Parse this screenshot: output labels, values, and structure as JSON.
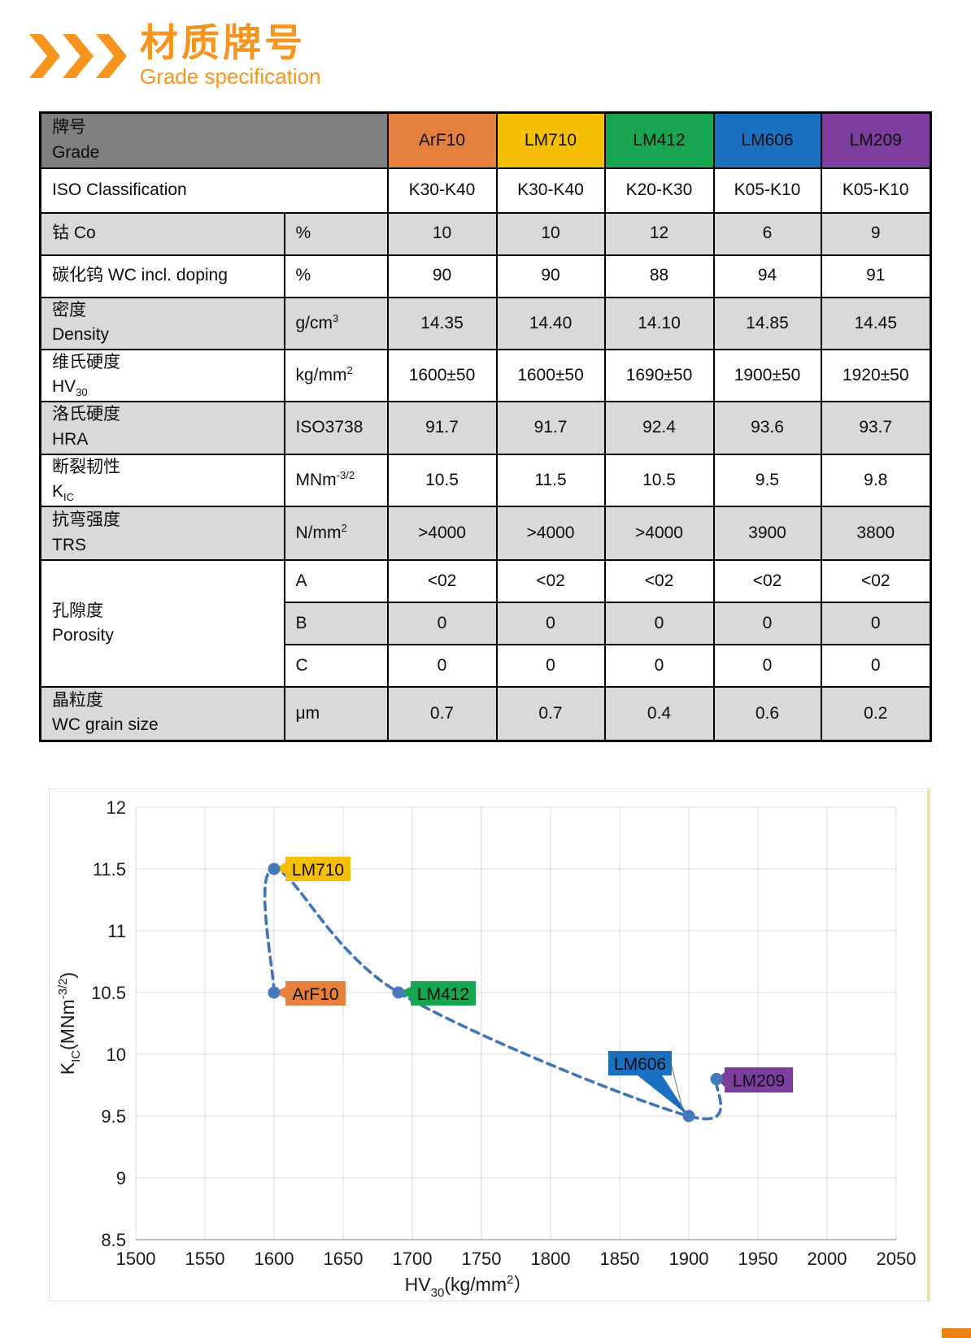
{
  "page": {
    "accent_color": "#F7941D",
    "corner_block_color": "#EE8211",
    "logo": {
      "title_cn": "材质牌号",
      "subtitle": "Grade specification"
    }
  },
  "table": {
    "header": {
      "label_cn": "牌号",
      "label_en": "Grade"
    },
    "grades": [
      {
        "name": "ArF10",
        "color": "#E5813D"
      },
      {
        "name": "LM710",
        "color": "#F5C003"
      },
      {
        "name": "LM412",
        "color": "#17A550"
      },
      {
        "name": "LM606",
        "color": "#1B6FC0"
      },
      {
        "name": "LM209",
        "color": "#7D3E9E"
      }
    ],
    "iso": {
      "label": "ISO Classification",
      "values": [
        "K30-K40",
        "K30-K40",
        "K20-K30",
        "K05-K10",
        "K05-K10"
      ]
    },
    "rows": [
      {
        "label_cn": "钴 Co",
        "label_en_pre": "",
        "label_en_sub": "",
        "unit_pre": "%",
        "unit_sup": "",
        "values": [
          "10",
          "10",
          "12",
          "6",
          "9"
        ]
      },
      {
        "label_cn": "碳化钨 WC incl. doping",
        "label_en_pre": "",
        "label_en_sub": "",
        "unit_pre": "%",
        "unit_sup": "",
        "values": [
          "90",
          "90",
          "88",
          "94",
          "91"
        ]
      },
      {
        "label_cn": "密度",
        "label_en_pre": "Density",
        "label_en_sub": "",
        "unit_pre": "g/cm",
        "unit_sup": "3",
        "values": [
          "14.35",
          "14.40",
          "14.10",
          "14.85",
          "14.45"
        ]
      },
      {
        "label_cn": "维氏硬度",
        "label_en_pre": "HV",
        "label_en_sub": "30",
        "unit_pre": "kg/mm",
        "unit_sup": "2",
        "values": [
          "1600±50",
          "1600±50",
          "1690±50",
          "1900±50",
          "1920±50"
        ]
      },
      {
        "label_cn": "洛氏硬度",
        "label_en_pre": "HRA",
        "label_en_sub": "",
        "unit_pre": "ISO3738",
        "unit_sup": "",
        "values": [
          "91.7",
          "91.7",
          "92.4",
          "93.6",
          "93.7"
        ]
      },
      {
        "label_cn": "断裂韧性",
        "label_en_pre": "K",
        "label_en_sub": "IC",
        "unit_pre": "MNm",
        "unit_sup": "-3/2",
        "values": [
          "10.5",
          "11.5",
          "10.5",
          "9.5",
          "9.8"
        ]
      },
      {
        "label_cn": "抗弯强度",
        "label_en_pre": "TRS",
        "label_en_sub": "",
        "unit_pre": "N/mm",
        "unit_sup": "2",
        "values": [
          ">4000",
          ">4000",
          ">4000",
          "3900",
          "3800"
        ]
      },
      {
        "label_cn": "晶粒度",
        "label_en_pre": "WC grain size",
        "label_en_sub": "",
        "unit_pre": "μm",
        "unit_sup": "",
        "values": [
          "0.7",
          "0.7",
          "0.4",
          "0.6",
          "0.2"
        ]
      }
    ],
    "porosity": {
      "label_cn": "孔隙度",
      "label_en": "Porosity",
      "sub_rows": [
        {
          "unit": "A",
          "values": [
            "<02",
            "<02",
            "<02",
            "<02",
            "<02"
          ]
        },
        {
          "unit": "B",
          "values": [
            "0",
            "0",
            "0",
            "0",
            "0"
          ]
        },
        {
          "unit": "C",
          "values": [
            "0",
            "0",
            "0",
            "0",
            "0"
          ]
        }
      ]
    }
  },
  "chart_data": {
    "type": "scatter",
    "title": "",
    "xlabel": "HV30(kg/mm2)",
    "ylabel": "KIC(MNm-3/2)",
    "xlabel_parts": [
      [
        "HV",
        "n"
      ],
      [
        "30",
        "sub"
      ],
      [
        "(kg/mm",
        "n"
      ],
      [
        "2",
        "sup"
      ],
      [
        "）",
        "n"
      ]
    ],
    "ylabel_parts": [
      [
        "K",
        "n"
      ],
      [
        "IC",
        "sub"
      ],
      [
        "(MNm",
        "n"
      ],
      [
        "-3/2",
        "sup"
      ],
      [
        ")",
        "n"
      ]
    ],
    "xlim": [
      1500,
      2050
    ],
    "ylim": [
      8.5,
      12
    ],
    "x_ticks": [
      1500,
      1550,
      1600,
      1650,
      1700,
      1750,
      1800,
      1850,
      1900,
      1950,
      2000,
      2050
    ],
    "y_ticks": [
      12,
      11.5,
      11,
      10.5,
      10,
      9.5,
      9,
      8.5
    ],
    "grid": true,
    "legend": "none",
    "line_style": "dashed-smooth",
    "line_color": "#3E74B8",
    "marker_color": "#4679B9",
    "points": [
      {
        "label": "ArF10",
        "x": 1600,
        "y": 10.5,
        "color": "#E5813D"
      },
      {
        "label": "LM710",
        "x": 1600,
        "y": 11.5,
        "color": "#F5C003"
      },
      {
        "label": "LM412",
        "x": 1690,
        "y": 10.5,
        "color": "#17A550"
      },
      {
        "label": "LM606",
        "x": 1900,
        "y": 9.5,
        "color": "#1B6FC0"
      },
      {
        "label": "LM209",
        "x": 1920,
        "y": 9.8,
        "color": "#7D3E9E"
      }
    ]
  }
}
